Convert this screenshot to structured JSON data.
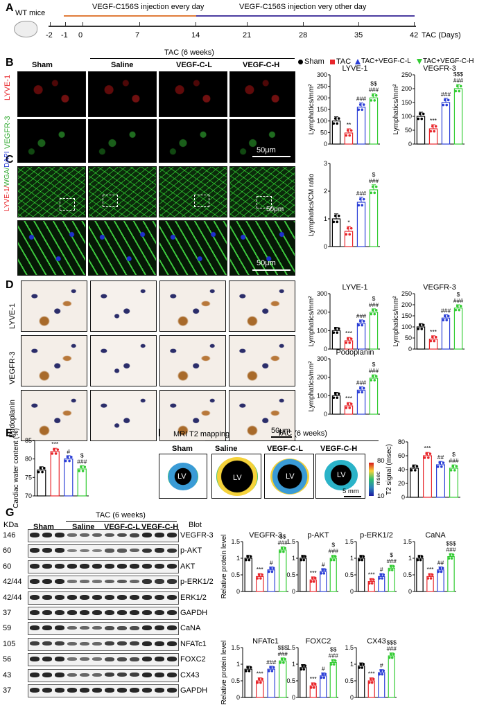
{
  "panels": {
    "a": "A",
    "b": "B",
    "c": "C",
    "d": "D",
    "e": "E",
    "f": "F",
    "g": "G"
  },
  "timeline": {
    "mice": "WT mice",
    "phase1": "VEGF-C156S injection every day",
    "phase2": "VEGF-C156S injection very other day",
    "ticks": [
      "-2",
      "-1",
      "0",
      "7",
      "14",
      "21",
      "28",
      "35",
      "42"
    ],
    "unit": "TAC (Days)"
  },
  "b": {
    "group_header": "TAC (6 weeks)",
    "columns": [
      "Sham",
      "Saline",
      "VEGF-C-L",
      "VEGF-C-H"
    ],
    "rows": [
      "LYVE-1",
      "VEGFR-3"
    ],
    "scale": "50μm"
  },
  "legend": [
    "Sham",
    "TAC",
    "TAC+VEGF-C-L",
    "TAC+VEGF-C-H"
  ],
  "colors": {
    "sham": "#000000",
    "tac": "#e8262b",
    "low": "#2b3fd6",
    "high": "#33cc33"
  },
  "c": {
    "stain": "LYVE-1/WGA/DAPI",
    "scale_top": "50μm",
    "scale_bottom": "50μm"
  },
  "d": {
    "rows": [
      "LYVE-1",
      "VEGFR-3",
      "Podoplanin"
    ],
    "scale": "50μm"
  },
  "f": {
    "title": "MRI T2 mapping",
    "group_header": "TAC (6 weeks)",
    "columns": [
      "Sham",
      "Saline",
      "VEGF-C-L",
      "VEGF-C-H"
    ],
    "lv": "LV",
    "cb_max": "80",
    "cb_min": "10",
    "cb_unit": "msec",
    "scale": "5 mm"
  },
  "g": {
    "header_kda": "KDa",
    "header_blot": "Blot",
    "group_header": "TAC (6 weeks)",
    "columns": [
      "Sham",
      "Saline",
      "VEGF-C-L",
      "VEGF-C-H"
    ],
    "kda": [
      "146",
      "60",
      "60",
      "42/44",
      "42/44",
      "37",
      "59",
      "105",
      "56",
      "43",
      "37"
    ],
    "blots": [
      "VEGFR-3",
      "p-AKT",
      "AKT",
      "p-ERK1/2",
      "ERK1/2",
      "GAPDH",
      "CaNA",
      "NFATc1",
      "FOXC2",
      "CX43",
      "GAPDH"
    ]
  },
  "chart_data": [
    {
      "id": "b-lyve1",
      "type": "bar",
      "title": "LYVE-1",
      "ylabel": "Lymphatics/mm²",
      "ylim": [
        0,
        300
      ],
      "yticks": [
        "0",
        "50",
        "100",
        "150",
        "200",
        "250",
        "300"
      ],
      "values": [
        100,
        48,
        160,
        200
      ],
      "sig": [
        "",
        "**",
        "###",
        "$$\n###"
      ]
    },
    {
      "id": "b-vegfr3",
      "type": "bar",
      "title": "VEGFR-3",
      "ylabel": "Lymphatics/mm²",
      "ylim": [
        0,
        250
      ],
      "yticks": [
        "0",
        "50",
        "100",
        "150",
        "200",
        "250"
      ],
      "values": [
        100,
        55,
        150,
        200
      ],
      "sig": [
        "",
        "***",
        "###",
        "$$$\n###"
      ]
    },
    {
      "id": "c-ratio",
      "type": "bar",
      "title": "",
      "ylabel": "Lymphatics/CM ratio",
      "ylim": [
        0,
        3
      ],
      "yticks": [
        "0",
        "1",
        "2",
        "3"
      ],
      "values": [
        1.0,
        0.55,
        1.6,
        2.05
      ],
      "sig": [
        "",
        "*",
        "###",
        "$\n###"
      ]
    },
    {
      "id": "d-lyve1",
      "type": "bar",
      "title": "LYVE-1",
      "ylabel": "Lymphatics/mm²",
      "ylim": [
        0,
        300
      ],
      "yticks": [
        "0",
        "100",
        "200",
        "300"
      ],
      "values": [
        100,
        45,
        140,
        200
      ],
      "sig": [
        "",
        "***",
        "###",
        "$\n###"
      ]
    },
    {
      "id": "d-vegfr3",
      "type": "bar",
      "title": "VEGFR-3",
      "ylabel": "Lymphatics/mm²",
      "ylim": [
        0,
        250
      ],
      "yticks": [
        "0",
        "50",
        "100",
        "150",
        "200",
        "250"
      ],
      "values": [
        100,
        45,
        140,
        185
      ],
      "sig": [
        "",
        "***",
        "###",
        "$\n###"
      ]
    },
    {
      "id": "d-podo",
      "type": "bar",
      "title": "Podoplanin",
      "ylabel": "Lymphatics/mm²",
      "ylim": [
        0,
        300
      ],
      "yticks": [
        "0",
        "100",
        "200",
        "300"
      ],
      "values": [
        100,
        45,
        130,
        195
      ],
      "sig": [
        "",
        "***",
        "###",
        "$\n###"
      ]
    },
    {
      "id": "e-water",
      "type": "bar",
      "title": "",
      "ylabel": "Cardiac water content (%)",
      "ylim": [
        70,
        85
      ],
      "yticks": [
        "70",
        "75",
        "80",
        "85"
      ],
      "values": [
        77,
        82,
        80,
        77.3
      ],
      "sig": [
        "",
        "***",
        "#",
        "$\n###"
      ]
    },
    {
      "id": "f-t2",
      "type": "bar",
      "title": "",
      "ylabel": "T2 signal (msec)",
      "ylim": [
        0,
        80
      ],
      "yticks": [
        "0",
        "20",
        "40",
        "60",
        "80"
      ],
      "values": [
        42,
        60,
        47,
        42
      ],
      "sig": [
        "",
        "***",
        "##",
        "$\n###"
      ]
    },
    {
      "id": "g-vegfr3",
      "type": "bar",
      "title": "VEGFR-3",
      "ylabel": "Relative protein level",
      "ylim": [
        0,
        1.5
      ],
      "yticks": [
        "0",
        "0.5",
        "1",
        "1.5"
      ],
      "values": [
        1.0,
        0.45,
        0.65,
        1.25
      ],
      "sig": [
        "",
        "***",
        "#",
        "$$\n###"
      ]
    },
    {
      "id": "g-pakt",
      "type": "bar",
      "title": "p-AKT",
      "ylabel": "",
      "ylim": [
        0,
        1.5
      ],
      "yticks": [
        "0",
        "0.5",
        "1",
        "1.5"
      ],
      "values": [
        1.0,
        0.35,
        0.6,
        1.0
      ],
      "sig": [
        "",
        "***",
        "#",
        "$\n###"
      ]
    },
    {
      "id": "g-perk",
      "type": "bar",
      "title": "p-ERK1/2",
      "ylabel": "",
      "ylim": [
        0,
        1.5
      ],
      "yticks": [
        "0",
        "0.5",
        "1",
        "1.5"
      ],
      "values": [
        1.0,
        0.3,
        0.45,
        0.7
      ],
      "sig": [
        "",
        "***",
        "#",
        "$\n###"
      ]
    },
    {
      "id": "g-cana",
      "type": "bar",
      "title": "CaNA",
      "ylabel": "",
      "ylim": [
        0,
        1.5
      ],
      "yticks": [
        "0",
        "0.5",
        "1",
        "1.5"
      ],
      "values": [
        1.0,
        0.45,
        0.65,
        1.05
      ],
      "sig": [
        "",
        "***",
        "##",
        "$$$\n###"
      ]
    },
    {
      "id": "g-nfatc1",
      "type": "bar",
      "title": "NFATc1",
      "ylabel": "Relative protein level",
      "ylim": [
        0,
        1.5
      ],
      "yticks": [
        "0",
        "0.5",
        "1",
        "1.5"
      ],
      "values": [
        0.85,
        0.5,
        0.85,
        1.1
      ],
      "sig": [
        "",
        "***",
        "###",
        "$$$\n###"
      ]
    },
    {
      "id": "g-foxc2",
      "type": "bar",
      "title": "FOXC2",
      "ylabel": "",
      "ylim": [
        0,
        1.5
      ],
      "yticks": [
        "0",
        "0.5",
        "1",
        "1.5"
      ],
      "values": [
        0.9,
        0.35,
        0.65,
        1.05
      ],
      "sig": [
        "",
        "***",
        "#",
        "$$\n###"
      ]
    },
    {
      "id": "g-cx43",
      "type": "bar",
      "title": "CX43",
      "ylabel": "",
      "ylim": [
        0,
        1.5
      ],
      "yticks": [
        "0",
        "0.5",
        "1",
        "1.5"
      ],
      "values": [
        0.95,
        0.5,
        0.75,
        1.25
      ],
      "sig": [
        "",
        "***",
        "#",
        "$$$\n###"
      ]
    }
  ]
}
